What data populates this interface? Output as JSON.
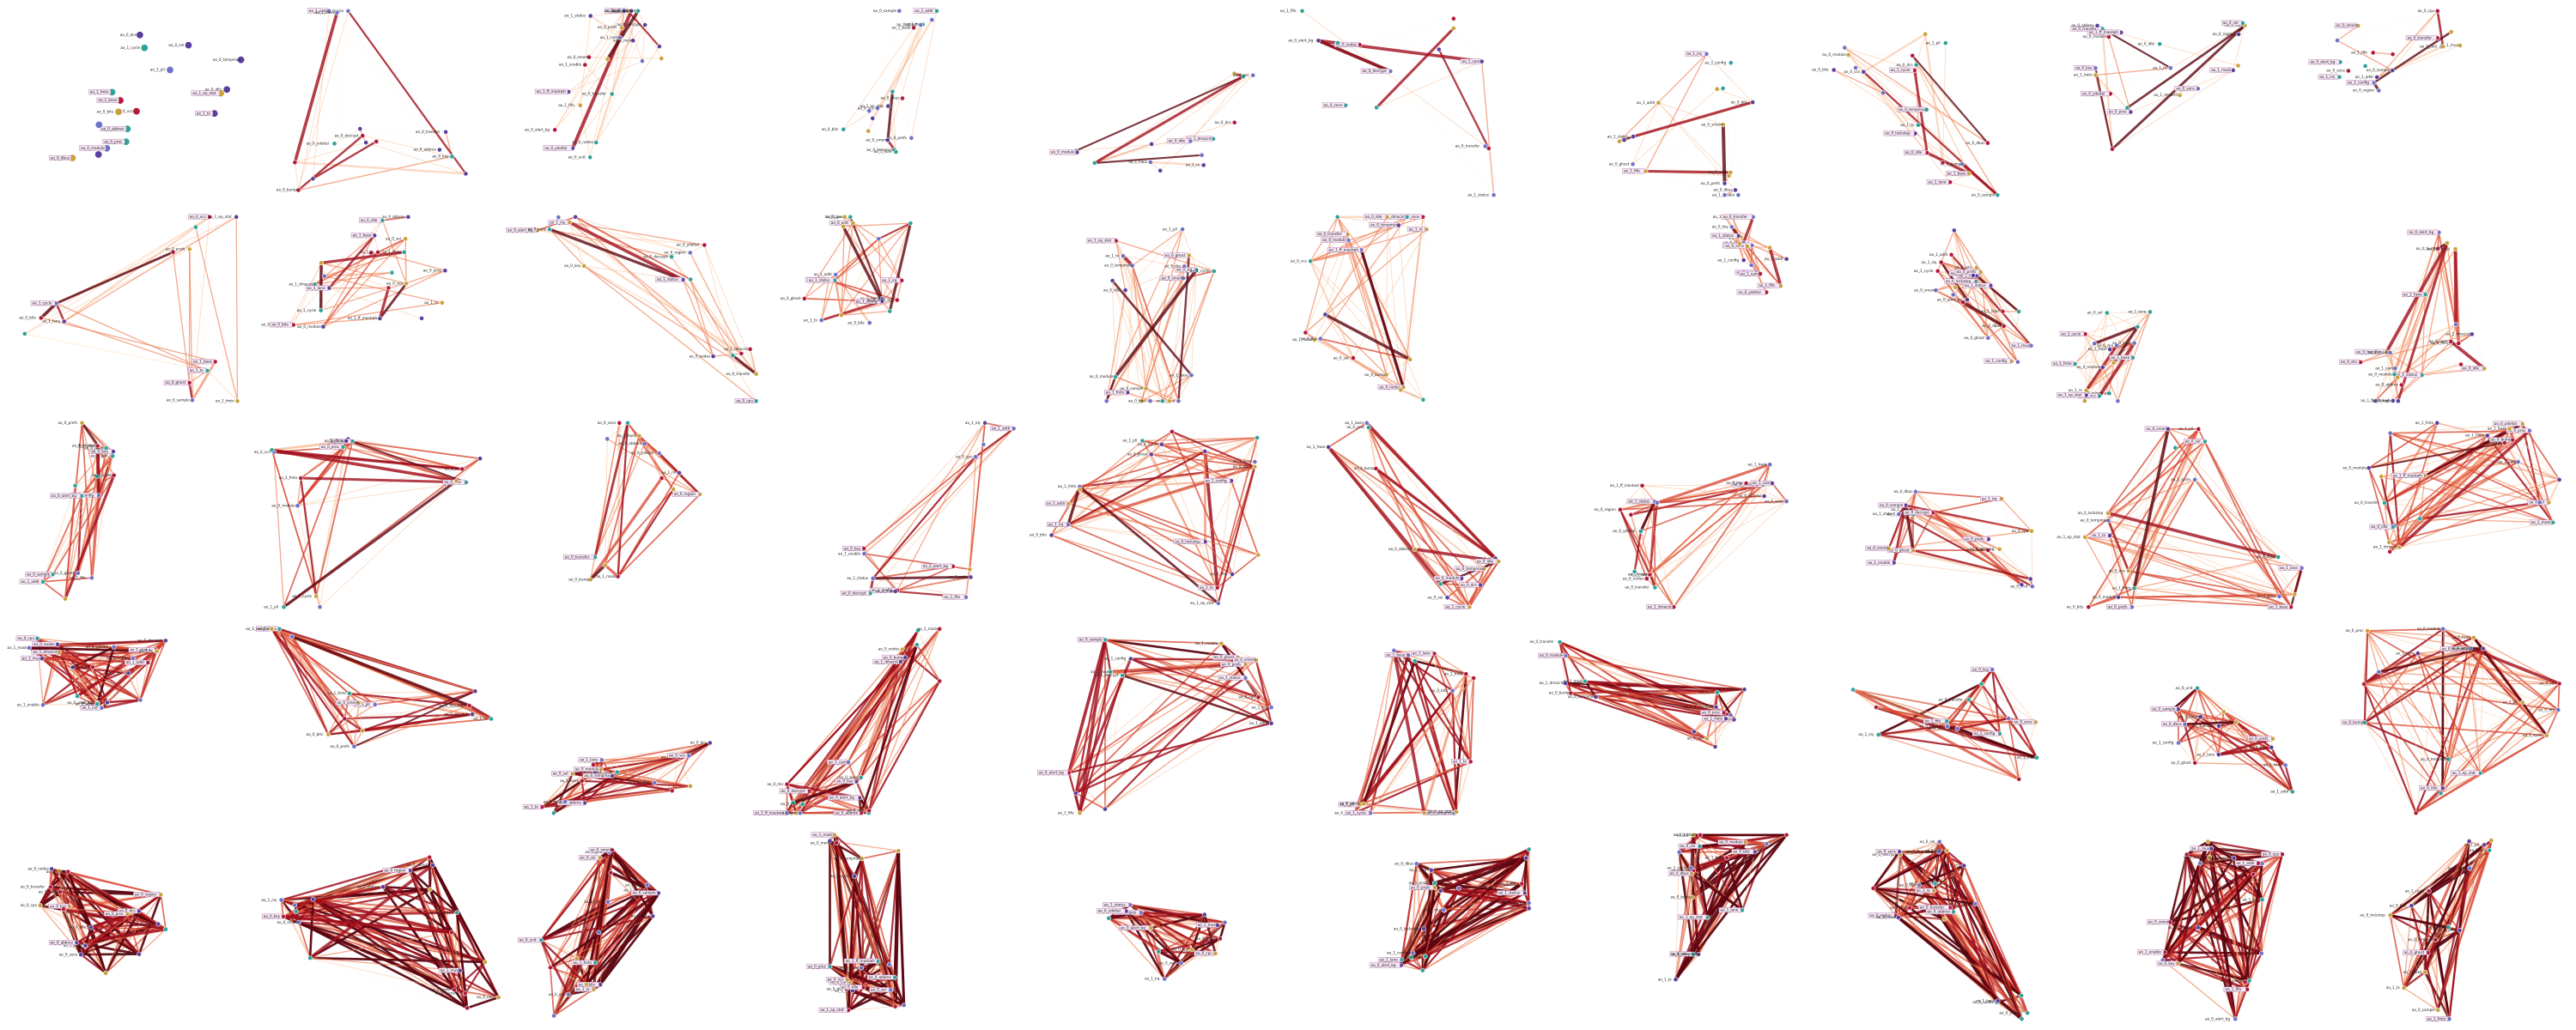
{
  "figure": {
    "rows": 5,
    "cols": 10,
    "node_labels": [
      "ao_0_abbrev",
      "ao_0_alert_bg",
      "ao_0_bits",
      "ao_0_bump",
      "ao_0_cpu",
      "ao_0_dbus",
      "ao_0_dcs",
      "ao_0_decrypt",
      "ao_0_ghost",
      "ao_0_idle",
      "ao_0_key",
      "ao_0_lockstep",
      "ao_0_module",
      "ao_0_nodes",
      "ao_0_prefs",
      "ao_0_proc",
      "ao_0_region",
      "ao_0_sample",
      "ao_0_sel",
      "ao_0_sens",
      "ao_0_smem",
      "ao_0_tempmax",
      "ao_0_transfer",
      "ao_0_unit",
      "ao_0_vcs",
      "ao_0_ydeltal",
      "ao_1_addr",
      "ao_1_base",
      "ao_1_cam",
      "ao_1_config",
      "ao_1_cycle",
      "ao_1_dmacnt",
      "ao_1_enable",
      "ao_1_ep_stat",
      "ao_1_ff_maskwh",
      "ao_1_fifo",
      "ao_1_fmtx",
      "ao_1_hwio",
      "ao_1_irq",
      "ao_1_lane",
      "ao_1_mask",
      "ao_1_mux",
      "ao_1_pll",
      "ao_1_rx",
      "ao_1_status",
      "ao_1_tx"
    ],
    "node_colors": {
      "blue": "#6f72c9",
      "purple": "#5a3f9c",
      "crimson": "#b3193a",
      "teal": "#2fa39a",
      "gold": "#c9a23c"
    },
    "edge_palette": [
      "#fde6cf",
      "#f7b98f",
      "#ee7d52",
      "#d7412e",
      "#a10f1d",
      "#5c0510"
    ]
  }
}
